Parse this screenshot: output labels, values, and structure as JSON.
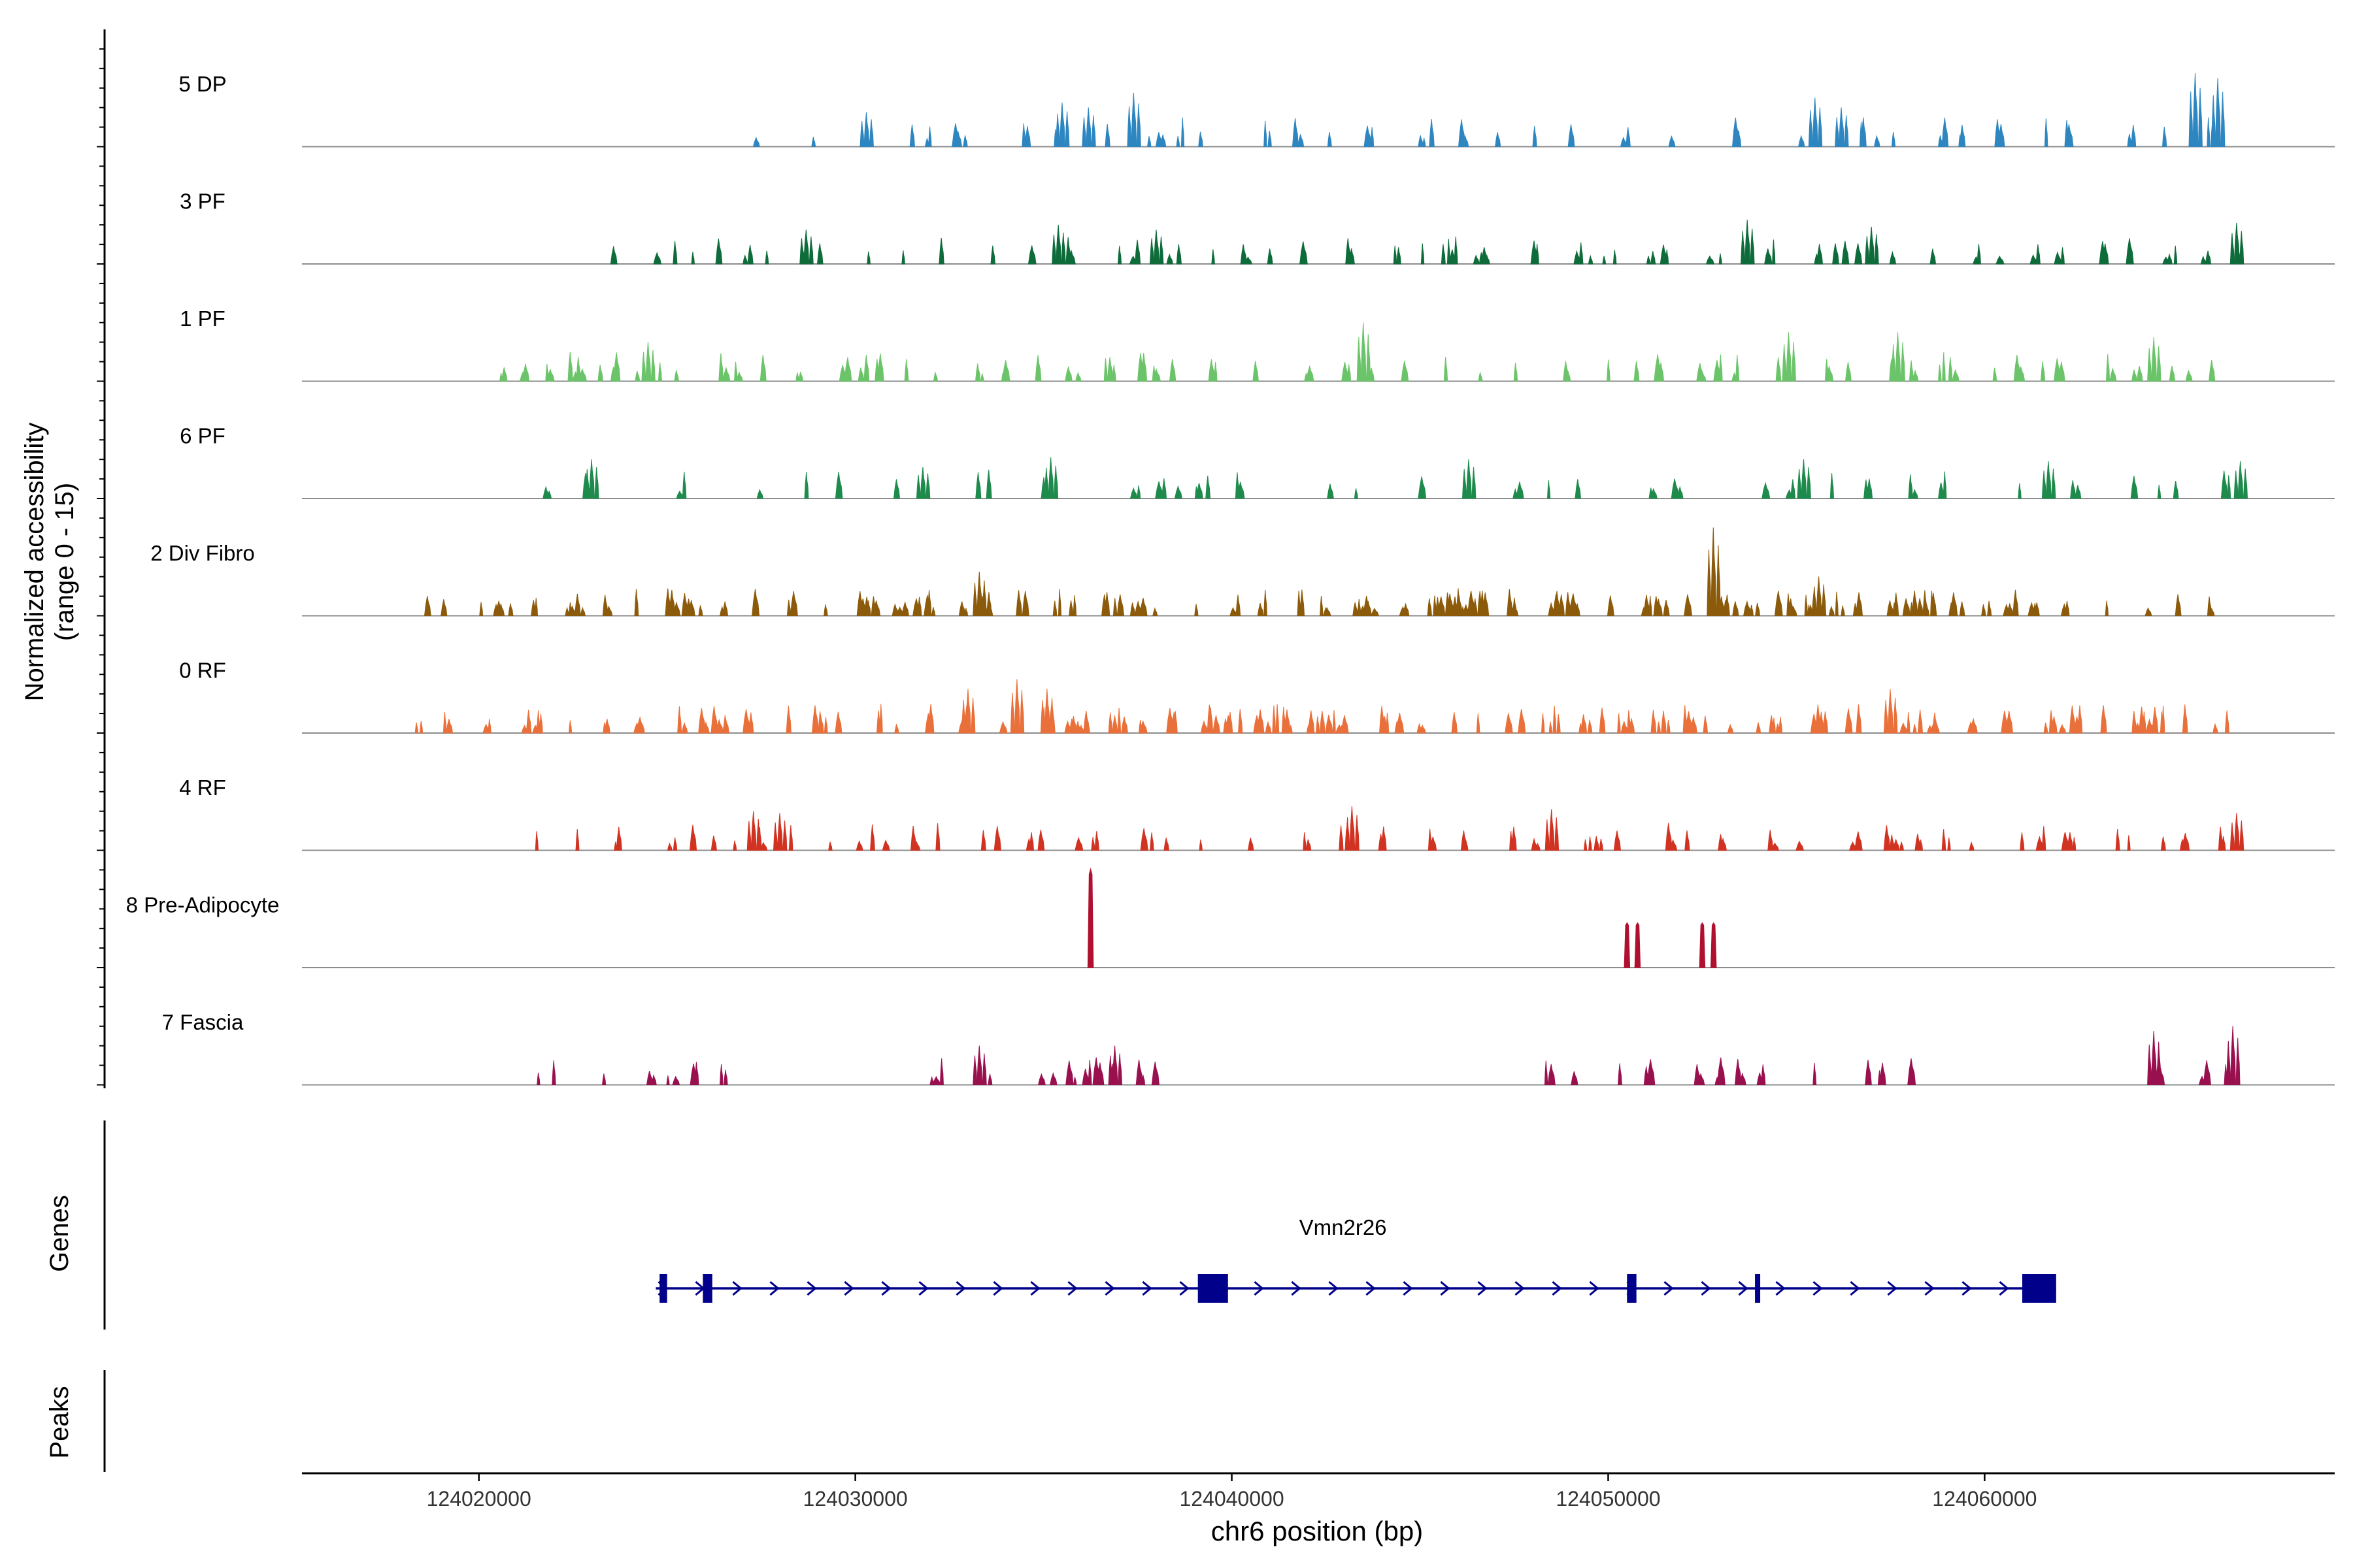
{
  "chart_data": {
    "type": "area",
    "title": "",
    "ylabel": "Normalized accessibility",
    "ylabel_range": "(range 0 - 15)",
    "xlabel": "chr6 position (bp)",
    "xlim": [
      124015300,
      124069300
    ],
    "ylim": [
      0,
      15
    ],
    "x_ticks": [
      124020000,
      124030000,
      124040000,
      124050000,
      124060000
    ],
    "x_tick_labels": [
      "124020000",
      "124030000",
      "124040000",
      "124050000",
      "124060000"
    ],
    "tracks": [
      {
        "name": "5 DP",
        "color": "#2e86c1",
        "kind": "sparse",
        "seed": 11,
        "start": 124026800,
        "end": 124066500,
        "density": 0.45,
        "amp": 0.3,
        "peaks": [
          [
            124030300,
            0.35
          ],
          [
            124035500,
            0.45
          ],
          [
            124036200,
            0.4
          ],
          [
            124037400,
            0.55
          ],
          [
            124055500,
            0.5
          ],
          [
            124056200,
            0.4
          ],
          [
            124065600,
            0.75
          ],
          [
            124066200,
            0.7
          ]
        ]
      },
      {
        "name": "3 PF",
        "color": "#0e6b3a",
        "kind": "sparse",
        "seed": 23,
        "start": 124023100,
        "end": 124066800,
        "density": 0.6,
        "amp": 0.28,
        "peaks": [
          [
            124028700,
            0.35
          ],
          [
            124035400,
            0.4
          ],
          [
            124038000,
            0.35
          ],
          [
            124053700,
            0.45
          ],
          [
            124057000,
            0.38
          ],
          [
            124066700,
            0.42
          ]
        ]
      },
      {
        "name": "1 PF",
        "color": "#6cc46a",
        "kind": "sparse",
        "seed": 37,
        "start": 124020100,
        "end": 124066600,
        "density": 0.6,
        "amp": 0.3,
        "peaks": [
          [
            124024500,
            0.4
          ],
          [
            124043500,
            0.6
          ],
          [
            124054800,
            0.5
          ],
          [
            124057700,
            0.5
          ],
          [
            124064500,
            0.45
          ]
        ]
      },
      {
        "name": "6 PF",
        "color": "#1e8a4c",
        "kind": "sparse",
        "seed": 41,
        "start": 124021000,
        "end": 124066800,
        "density": 0.3,
        "amp": 0.3,
        "peaks": [
          [
            124023000,
            0.4
          ],
          [
            124031800,
            0.32
          ],
          [
            124035200,
            0.42
          ],
          [
            124046300,
            0.4
          ],
          [
            124055200,
            0.4
          ],
          [
            124061700,
            0.38
          ],
          [
            124066800,
            0.38
          ]
        ]
      },
      {
        "name": "2 Div Fibro",
        "color": "#8b5a0a",
        "kind": "sparse",
        "seed": 53,
        "start": 124018200,
        "end": 124066800,
        "density": 0.75,
        "amp": 0.28,
        "peaks": [
          [
            124033300,
            0.45
          ],
          [
            124052800,
            0.9
          ],
          [
            124055600,
            0.4
          ]
        ]
      },
      {
        "name": "0 RF",
        "color": "#e9703a",
        "kind": "sparse",
        "seed": 67,
        "start": 124017900,
        "end": 124066700,
        "density": 0.75,
        "amp": 0.3,
        "peaks": [
          [
            124033000,
            0.45
          ],
          [
            124034300,
            0.55
          ],
          [
            124035100,
            0.45
          ],
          [
            124057500,
            0.45
          ]
        ]
      },
      {
        "name": "4 RF",
        "color": "#d13322",
        "kind": "sparse",
        "seed": 79,
        "start": 124021000,
        "end": 124066800,
        "density": 0.55,
        "amp": 0.28,
        "peaks": [
          [
            124027300,
            0.4
          ],
          [
            124028000,
            0.38
          ],
          [
            124043200,
            0.45
          ],
          [
            124048500,
            0.42
          ],
          [
            124066700,
            0.38
          ]
        ]
      },
      {
        "name": "8 Pre-Adipocyte",
        "color": "#b01030",
        "kind": "spikes",
        "peaks": [
          [
            124036250,
            2.2
          ],
          [
            124050500,
            1.0
          ],
          [
            124050780,
            1.0
          ],
          [
            124052500,
            1.0
          ],
          [
            124052800,
            1.0
          ]
        ]
      },
      {
        "name": "7 Fascia",
        "color": "#99104f",
        "kind": "sparse",
        "seed": 97,
        "start": 124021000,
        "end": 124066700,
        "density": 0.5,
        "amp": 0.28,
        "gaps": [
          [
            124027500,
            124032000
          ],
          [
            124038000,
            124048000
          ],
          [
            124058200,
            124064400
          ]
        ],
        "peaks": [
          [
            124033300,
            0.4
          ],
          [
            124036900,
            0.4
          ],
          [
            124064500,
            0.55
          ],
          [
            124066600,
            0.6
          ]
        ]
      }
    ],
    "genes_label": "Genes",
    "peaks_label": "Peaks",
    "gene": {
      "name": "Vmn2r26",
      "strand": "+",
      "start": 124024700,
      "end": 124061900,
      "exons": [
        [
          124024800,
          124025000
        ],
        [
          124025950,
          124026200
        ],
        [
          124039100,
          124039900
        ],
        [
          124050500,
          124050750
        ],
        [
          124053900,
          124054000
        ],
        [
          124061000,
          124061900
        ]
      ]
    },
    "colors": {
      "axis": "#000000",
      "baseline": "#8c8c8c",
      "gene": "#00008b"
    }
  }
}
